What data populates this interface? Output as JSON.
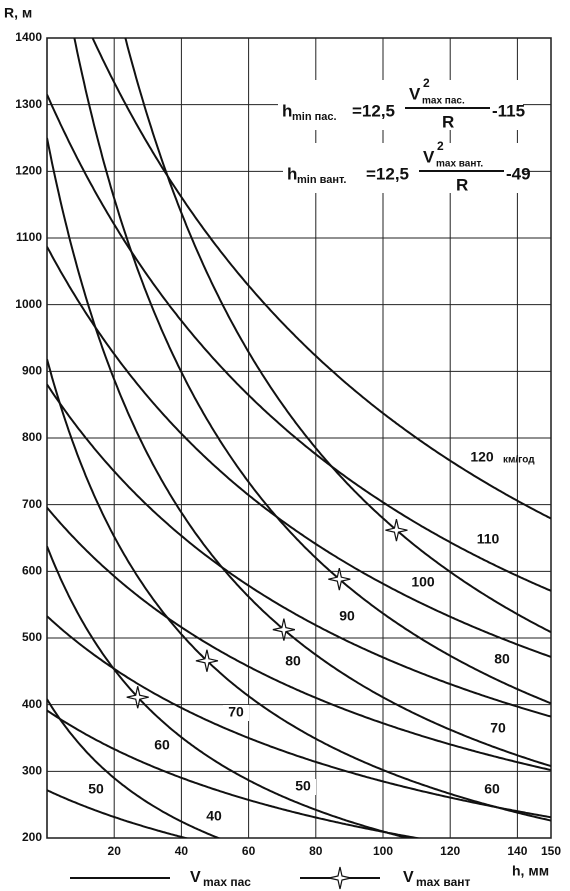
{
  "chart_data": {
    "type": "nomogram",
    "ylabel": "R, м",
    "xlabel": "h, мм",
    "xlim": [
      0,
      150
    ],
    "ylim": [
      200,
      1400
    ],
    "xticks": [
      20,
      40,
      60,
      80,
      100,
      120,
      140,
      150
    ],
    "yticks": [
      200,
      300,
      400,
      500,
      600,
      700,
      800,
      900,
      1000,
      1100,
      1200,
      1300,
      1400
    ],
    "grid": true,
    "unit_label": "км/год",
    "series": [
      {
        "name_main": "V",
        "name_sub": "max пас",
        "style": "line",
        "color": "#111111",
        "speeds": [
          120,
          110,
          100,
          90,
          80,
          70,
          60,
          50
        ],
        "formula": {
          "lhs": "h",
          "lhs_sub": "min пас.",
          "coef": {
            "value": 12.5,
            "label": "=12,5"
          },
          "num": "V",
          "num_sup": "2",
          "num_sub": "max пас.",
          "den": "R",
          "offset": {
            "value": -115,
            "label": "-115"
          }
        }
      },
      {
        "name_main": "V",
        "name_sub": "max вант",
        "style": "star",
        "color": "#111111",
        "speeds": [
          90,
          80,
          70,
          60,
          50,
          40
        ],
        "formula": {
          "lhs": "h",
          "lhs_sub": "min вант.",
          "coef": {
            "value": 12.5,
            "label": "=12,5"
          },
          "num": "V",
          "num_sup": "2",
          "num_sub": "max вант.",
          "den": "R",
          "offset": {
            "value": -49,
            "label": "-49"
          }
        }
      }
    ]
  }
}
